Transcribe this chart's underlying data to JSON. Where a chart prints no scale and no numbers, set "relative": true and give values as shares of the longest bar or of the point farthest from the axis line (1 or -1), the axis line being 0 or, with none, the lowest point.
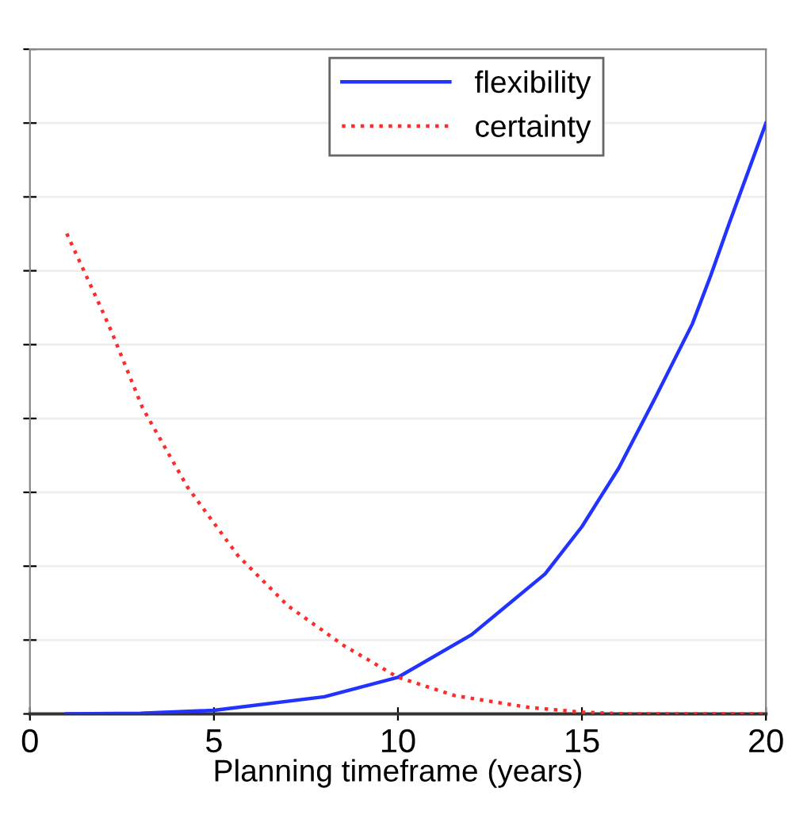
{
  "chart_data": {
    "type": "line",
    "relative": true,
    "xlabel": "Planning timeframe (years)",
    "xlim": [
      0,
      20
    ],
    "xticks": [
      0,
      5,
      10,
      15,
      20
    ],
    "grid": "y",
    "legend": "top right",
    "tick_labels": "x",
    "series": [
      {
        "name": "flexibility",
        "color": "#2233ff",
        "line_style": "solid",
        "x": [
          1,
          3,
          5,
          8,
          10,
          12,
          14,
          15,
          16,
          17,
          18,
          18.5,
          19,
          20
        ],
        "values": [
          0,
          0.001,
          0.006,
          0.029,
          0.062,
          0.134,
          0.237,
          0.317,
          0.416,
          0.536,
          0.66,
          0.742,
          0.83,
          1.0
        ]
      },
      {
        "name": "certainty",
        "color": "#ff2a2a",
        "line_style": "dotted",
        "x": [
          1,
          1.91,
          2.23,
          3.06,
          4.28,
          5.65,
          7.01,
          8.52,
          10,
          11.54,
          13.55,
          15,
          16.2,
          20
        ],
        "values": [
          0.813,
          0.69,
          0.645,
          0.518,
          0.384,
          0.268,
          0.183,
          0.116,
          0.062,
          0.031,
          0.011,
          0.003,
          0,
          0
        ]
      }
    ]
  }
}
